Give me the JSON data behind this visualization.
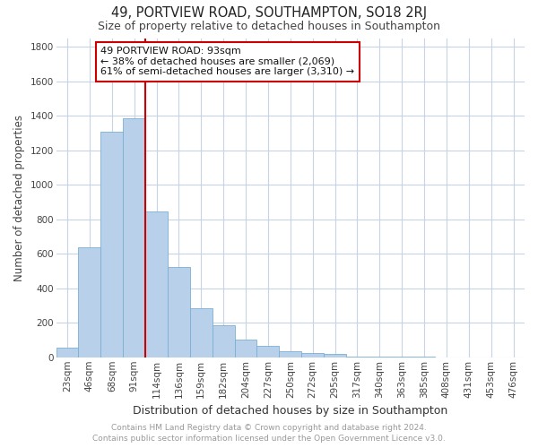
{
  "title": "49, PORTVIEW ROAD, SOUTHAMPTON, SO18 2RJ",
  "subtitle": "Size of property relative to detached houses in Southampton",
  "xlabel": "Distribution of detached houses by size in Southampton",
  "ylabel": "Number of detached properties",
  "categories": [
    "23sqm",
    "46sqm",
    "68sqm",
    "91sqm",
    "114sqm",
    "136sqm",
    "159sqm",
    "182sqm",
    "204sqm",
    "227sqm",
    "250sqm",
    "272sqm",
    "295sqm",
    "317sqm",
    "340sqm",
    "363sqm",
    "385sqm",
    "408sqm",
    "431sqm",
    "453sqm",
    "476sqm"
  ],
  "values": [
    55,
    635,
    1305,
    1385,
    845,
    525,
    285,
    185,
    105,
    65,
    35,
    25,
    22,
    5,
    5,
    3,
    2,
    1,
    1,
    0,
    0
  ],
  "bar_color": "#b8d0ea",
  "bar_edge_color": "#7aafd4",
  "vline_color": "#cc0000",
  "annotation_text": "49 PORTVIEW ROAD: 93sqm\n← 38% of detached houses are smaller (2,069)\n61% of semi-detached houses are larger (3,310) →",
  "annotation_box_color": "#ffffff",
  "annotation_box_edge_color": "#cc0000",
  "ylim": [
    0,
    1850
  ],
  "yticks": [
    0,
    200,
    400,
    600,
    800,
    1000,
    1200,
    1400,
    1600,
    1800
  ],
  "background_color": "#ffffff",
  "grid_color": "#c8d4e4",
  "footer_text": "Contains HM Land Registry data © Crown copyright and database right 2024.\nContains public sector information licensed under the Open Government Licence v3.0.",
  "title_fontsize": 10.5,
  "subtitle_fontsize": 9,
  "xlabel_fontsize": 9,
  "ylabel_fontsize": 8.5,
  "tick_fontsize": 7.5,
  "annotation_fontsize": 8,
  "footer_fontsize": 6.5
}
